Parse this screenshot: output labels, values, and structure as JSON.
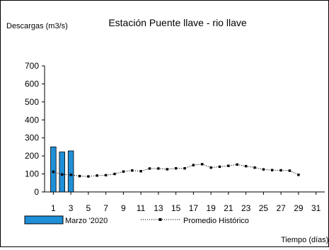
{
  "chart_data": {
    "type": "bar",
    "title": "Estación Puente llave - rio llave",
    "ylabel": "Descargas (m3/s)",
    "xlabel": "Tiempo  (días)",
    "ylim": [
      0,
      700
    ],
    "yticks": [
      0,
      100,
      200,
      300,
      400,
      500,
      600,
      700
    ],
    "xlim": [
      0,
      32
    ],
    "xticks": [
      1,
      3,
      5,
      7,
      9,
      11,
      13,
      15,
      17,
      19,
      21,
      23,
      25,
      27,
      29,
      31
    ],
    "grid": false,
    "legend_placement": "bottom",
    "series": [
      {
        "name": "Marzo '2020",
        "type": "bar",
        "color": "#1f8fd8",
        "x": [
          1,
          2,
          3
        ],
        "values": [
          250,
          222,
          228
        ]
      },
      {
        "name": "Promedio Histórico",
        "type": "line",
        "style": "dotted-with-square-markers",
        "color": "#000000",
        "x": [
          1,
          2,
          3,
          4,
          5,
          6,
          7,
          8,
          9,
          10,
          11,
          12,
          13,
          14,
          15,
          16,
          17,
          18,
          19,
          20,
          21,
          22,
          23,
          24,
          25,
          26,
          27,
          28,
          29
        ],
        "values": [
          112,
          97,
          95,
          88,
          86,
          91,
          93,
          100,
          113,
          119,
          115,
          130,
          130,
          126,
          131,
          131,
          149,
          154,
          135,
          140,
          145,
          152,
          143,
          135,
          125,
          121,
          120,
          118,
          95
        ]
      }
    ]
  }
}
